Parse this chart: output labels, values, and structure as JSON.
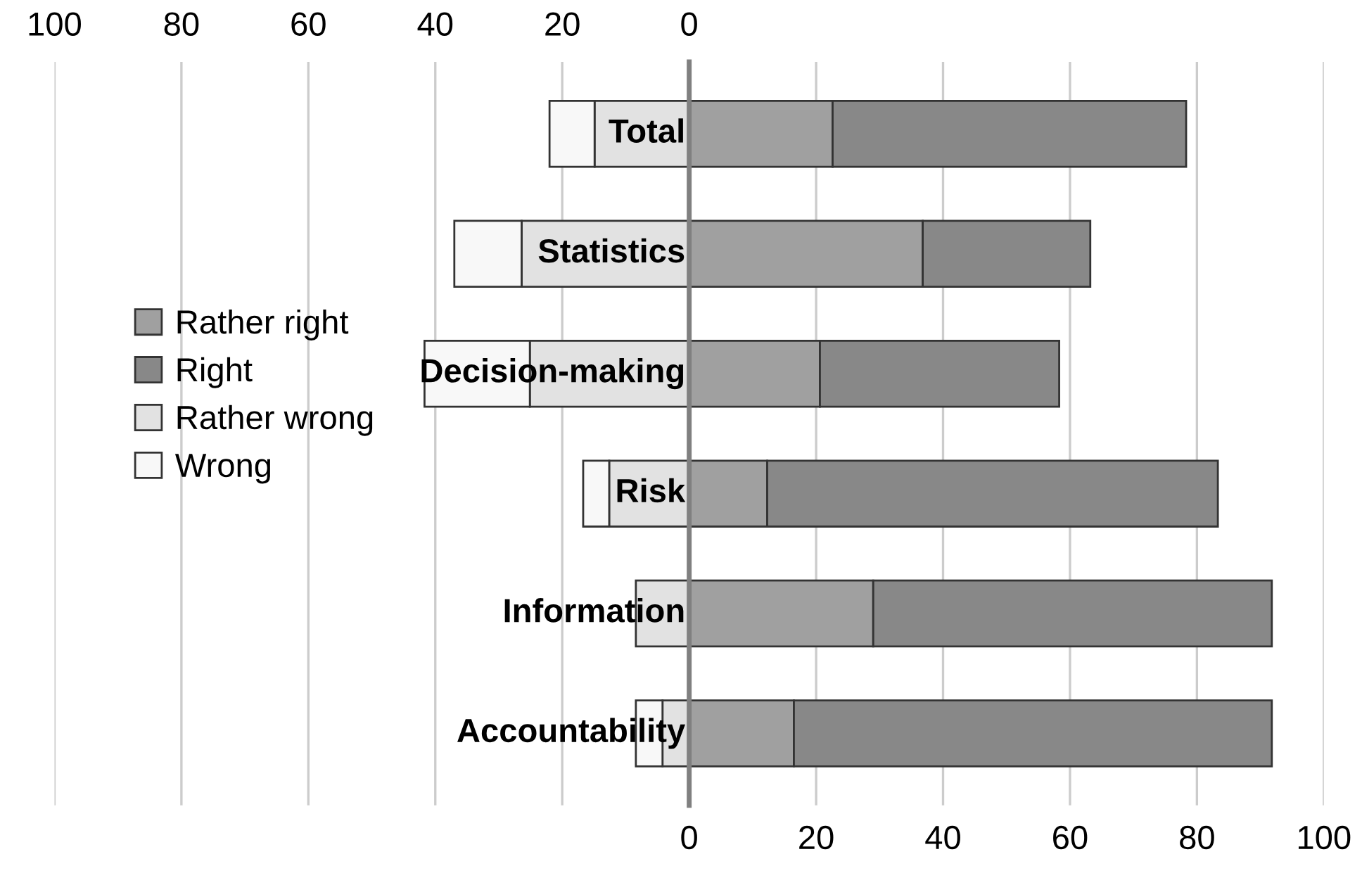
{
  "chart_data": {
    "type": "bar",
    "orientation": "horizontal",
    "stacked": true,
    "categories": [
      "Total",
      "Statistics",
      "Decision-making",
      "Risk",
      "Information",
      "Accountability"
    ],
    "series": [
      {
        "name": "Rather right",
        "color": "#a0a0a0",
        "values": [
          22.6,
          36.8,
          20.6,
          12.3,
          29.0,
          16.5
        ]
      },
      {
        "name": "Right",
        "color": "#888888",
        "values": [
          55.7,
          26.4,
          37.7,
          71.0,
          62.8,
          75.3
        ]
      },
      {
        "name": "Rather wrong",
        "color": "#e2e2e2",
        "values": [
          -14.9,
          -26.4,
          -25.1,
          -12.6,
          -8.4,
          -4.2
        ]
      },
      {
        "name": "Wrong",
        "color": "#f8f8f8",
        "values": [
          -7.1,
          -10.6,
          -16.6,
          -4.1,
          null,
          -4.2
        ]
      }
    ],
    "xlim": [
      -100,
      100
    ],
    "xticks": [
      {
        "value": -100,
        "label": null
      },
      {
        "value": -80,
        "label": null
      },
      {
        "value": -60,
        "label": null
      },
      {
        "value": -40,
        "label": null
      },
      {
        "value": -20,
        "label": null
      },
      0,
      20,
      40,
      60,
      80,
      100
    ],
    "x2lim": [
      -100,
      100
    ],
    "x2ticks": [
      {
        "value": -100,
        "label": "100"
      },
      {
        "value": -80,
        "label": "80"
      },
      {
        "value": -60,
        "label": "60"
      },
      {
        "value": -40,
        "label": "40"
      },
      {
        "value": -20,
        "label": "20"
      },
      0,
      {
        "value": 20,
        "label": null
      },
      {
        "value": 40,
        "label": null
      },
      {
        "value": 60,
        "label": null
      },
      {
        "value": 80,
        "label": null
      },
      {
        "value": 100,
        "label": null
      }
    ],
    "grid": "x",
    "legend": "left"
  }
}
